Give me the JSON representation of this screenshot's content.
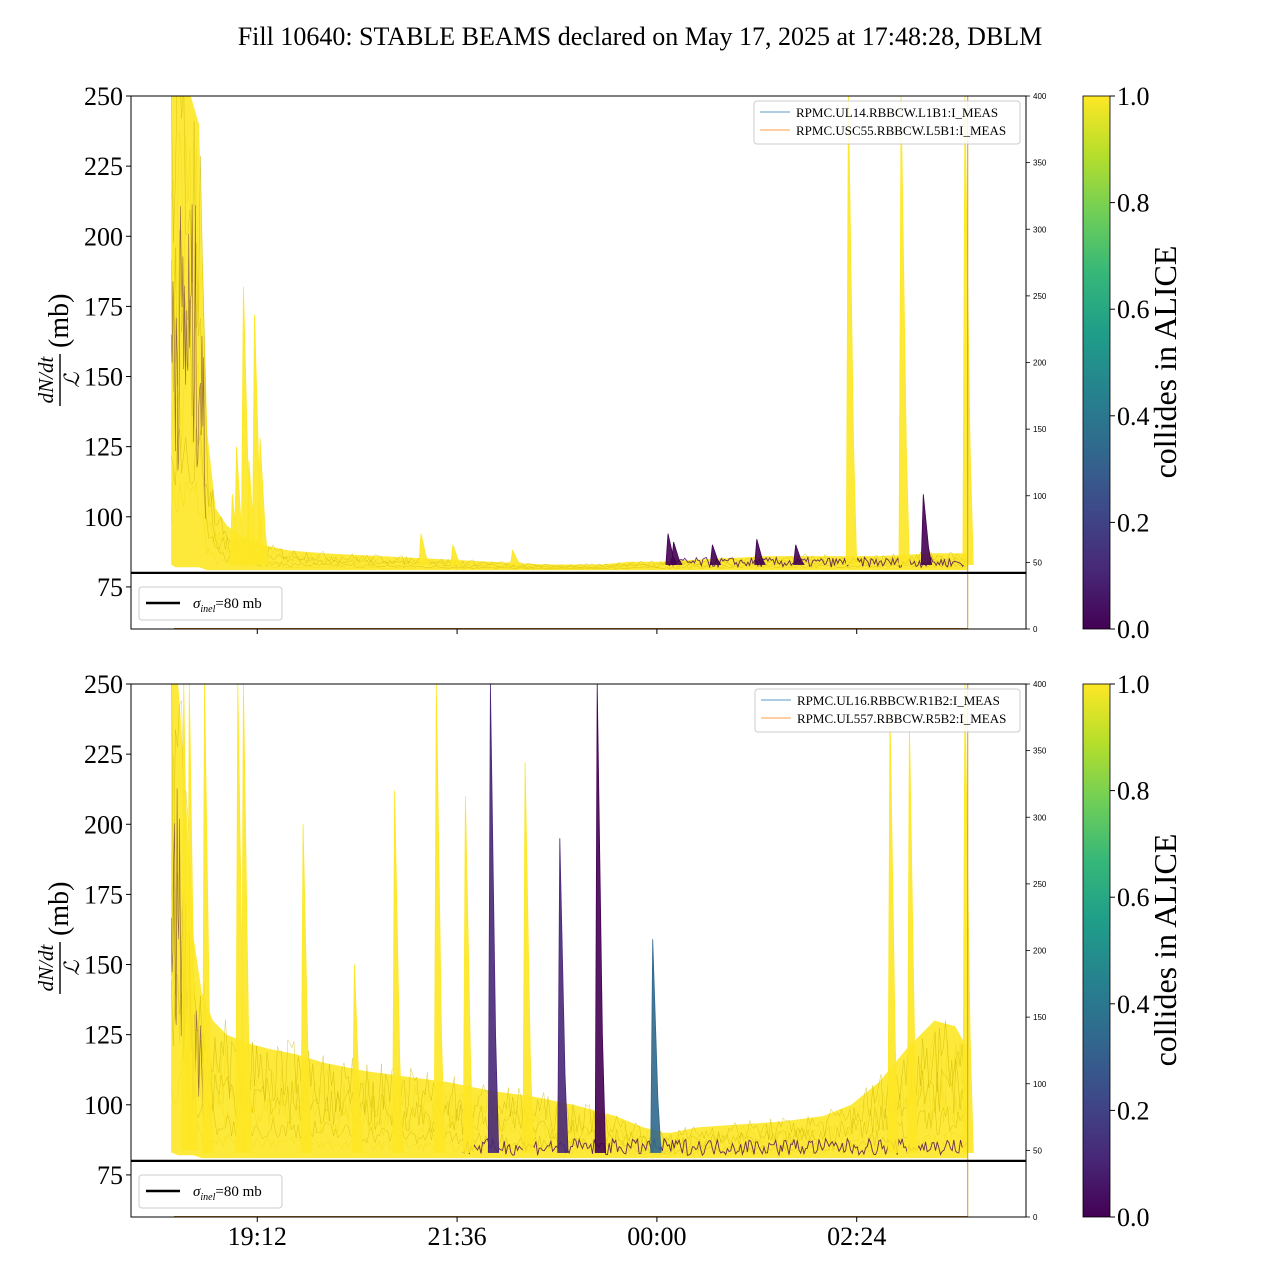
{
  "chart_data": {
    "title": "Fill 10640: STABLE BEAMS declared on May 17, 2025 at 17:48:28, DBLM",
    "type": "line",
    "x_axis": {
      "unit": "time (HH:MM)",
      "ticks": [
        {
          "t": 1152,
          "label": "19:12"
        },
        {
          "t": 1296,
          "label": "21:36"
        },
        {
          "t": 1440,
          "label": "24:00",
          "display": "00:00"
        },
        {
          "t": 1584,
          "label": "26:24",
          "display": "02:24"
        }
      ],
      "xlim": [
        1061,
        1706
      ],
      "data_start": 1090,
      "data_end": 1664
    },
    "colorbar": {
      "label": "collides in ALICE",
      "ticks": [
        "0.0",
        "0.2",
        "0.4",
        "0.6",
        "0.8",
        "1.0"
      ],
      "colormap": [
        "#440154",
        "#482878",
        "#3e4989",
        "#31688e",
        "#26828e",
        "#1f9e89",
        "#35b779",
        "#6ece58",
        "#b5de2b",
        "#fde725"
      ]
    },
    "threshold": {
      "value": 80,
      "legend": "=80 mb",
      "symbol": "σ",
      "subscript": "inel"
    },
    "ylabel": {
      "numerator": "dN/dt",
      "denominator": "ℒ",
      "unit": "(mb)"
    },
    "panels": [
      {
        "ylim": [
          60,
          250
        ],
        "yticks": [
          75,
          100,
          125,
          150,
          175,
          200,
          225,
          250
        ],
        "y2lim": [
          0,
          400
        ],
        "y2ticks": [
          0,
          50,
          100,
          150,
          200,
          250,
          300,
          350,
          400
        ],
        "legend": [
          "RPMC.UL14.RBBCW.L1B1:I_MEAS",
          "RPMC.USC55.RBBCW.L5B1:I_MEAS"
        ],
        "envelope": {
          "x": [
            1090,
            1093,
            1098,
            1104,
            1110,
            1116,
            1122,
            1130,
            1140,
            1155,
            1175,
            1200,
            1240,
            1280,
            1320,
            1360,
            1400,
            1420,
            1440,
            1480,
            1520,
            1560,
            1600,
            1640,
            1664
          ],
          "upper": [
            250,
            250,
            250,
            250,
            240,
            130,
            103,
            97,
            93,
            90,
            88,
            87,
            86,
            85,
            84,
            83,
            83,
            84,
            84,
            85,
            86,
            86,
            86,
            87,
            87
          ],
          "lower": [
            83,
            82,
            82,
            82,
            82,
            81,
            81,
            81,
            81,
            81,
            81,
            81,
            81,
            81,
            81,
            81,
            81,
            81,
            81,
            81,
            81,
            81,
            81,
            81,
            81
          ]
        },
        "spikes": [
          {
            "x": 1134,
            "y": 108,
            "c": 1.0
          },
          {
            "x": 1137,
            "y": 125,
            "c": 1.0
          },
          {
            "x": 1142,
            "y": 182,
            "c": 1.0
          },
          {
            "x": 1146,
            "y": 120,
            "c": 1.0
          },
          {
            "x": 1150,
            "y": 172,
            "c": 1.0
          },
          {
            "x": 1154,
            "y": 128,
            "c": 1.0
          },
          {
            "x": 1270,
            "y": 94,
            "c": 1.0
          },
          {
            "x": 1293,
            "y": 90,
            "c": 1.0
          },
          {
            "x": 1336,
            "y": 88,
            "c": 1.0
          },
          {
            "x": 1448,
            "y": 94,
            "c": 0.0
          },
          {
            "x": 1452,
            "y": 91,
            "c": 0.0
          },
          {
            "x": 1480,
            "y": 90,
            "c": 0.0
          },
          {
            "x": 1512,
            "y": 92,
            "c": 0.0
          },
          {
            "x": 1540,
            "y": 90,
            "c": 0.0
          },
          {
            "x": 1578,
            "y": 250,
            "c": 1.0
          },
          {
            "x": 1616,
            "y": 250,
            "c": 1.0
          },
          {
            "x": 1632,
            "y": 108,
            "c": 0.0
          },
          {
            "x": 1662,
            "y": 250,
            "c": 1.0
          }
        ],
        "dark_band_start": 1448
      },
      {
        "ylim": [
          60,
          250
        ],
        "yticks": [
          75,
          100,
          125,
          150,
          175,
          200,
          225,
          250
        ],
        "y2lim": [
          0,
          400
        ],
        "y2ticks": [
          0,
          50,
          100,
          150,
          200,
          250,
          300,
          350,
          400
        ],
        "legend": [
          "RPMC.UL16.RBBCW.R1B2:I_MEAS",
          "RPMC.UL557.RBBCW.R5B2:I_MEAS"
        ],
        "envelope": {
          "x": [
            1090,
            1095,
            1100,
            1106,
            1112,
            1120,
            1130,
            1145,
            1160,
            1180,
            1200,
            1230,
            1260,
            1290,
            1320,
            1350,
            1380,
            1410,
            1430,
            1445,
            1450,
            1470,
            1500,
            1530,
            1560,
            1580,
            1600,
            1620,
            1640,
            1655,
            1664
          ],
          "upper": [
            250,
            250,
            215,
            160,
            140,
            130,
            125,
            122,
            120,
            118,
            115,
            112,
            110,
            108,
            105,
            103,
            100,
            96,
            92,
            90,
            90,
            92,
            93,
            94,
            96,
            100,
            108,
            120,
            130,
            128,
            120
          ],
          "lower": [
            83,
            82,
            82,
            82,
            81,
            81,
            81,
            81,
            81,
            81,
            81,
            81,
            81,
            81,
            81,
            81,
            81,
            81,
            81,
            81,
            81,
            81,
            81,
            81,
            81,
            81,
            81,
            81,
            81,
            81,
            81
          ]
        },
        "spikes": [
          {
            "x": 1099,
            "y": 250,
            "c": 1.0
          },
          {
            "x": 1103,
            "y": 250,
            "c": 1.0
          },
          {
            "x": 1114,
            "y": 250,
            "c": 1.0
          },
          {
            "x": 1138,
            "y": 250,
            "c": 1.0
          },
          {
            "x": 1142,
            "y": 250,
            "c": 1.0
          },
          {
            "x": 1185,
            "y": 200,
            "c": 1.0
          },
          {
            "x": 1222,
            "y": 150,
            "c": 1.0
          },
          {
            "x": 1251,
            "y": 212,
            "c": 1.0
          },
          {
            "x": 1281,
            "y": 250,
            "c": 1.0
          },
          {
            "x": 1302,
            "y": 210,
            "c": 1.0
          },
          {
            "x": 1320,
            "y": 250,
            "c": 0.15
          },
          {
            "x": 1345,
            "y": 222,
            "c": 1.0
          },
          {
            "x": 1370,
            "y": 195,
            "c": 0.1
          },
          {
            "x": 1397,
            "y": 250,
            "c": 0.0
          },
          {
            "x": 1437,
            "y": 159,
            "c": 0.3
          },
          {
            "x": 1608,
            "y": 240,
            "c": 1.0
          },
          {
            "x": 1622,
            "y": 236,
            "c": 1.0
          },
          {
            "x": 1662,
            "y": 250,
            "c": 1.0
          }
        ],
        "dark_band_start": 1300
      }
    ]
  }
}
